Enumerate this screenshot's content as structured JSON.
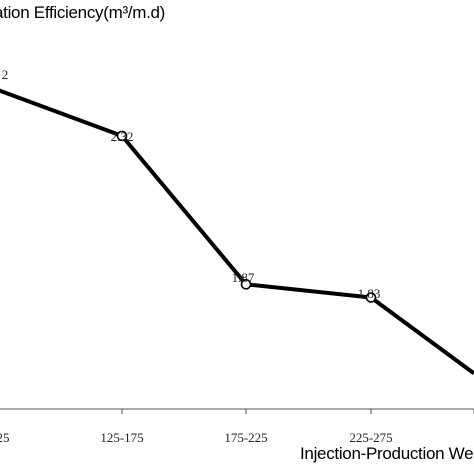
{
  "chart_data": {
    "type": "line",
    "title": "",
    "ylabel": "ation Efficiency(m³/m.d)",
    "xlabel": "Injection-Production We",
    "categories": [
      "25",
      "125-175",
      "175-225",
      "225-275",
      ""
    ],
    "series": [
      {
        "values": [
          null,
          2.32,
          1.87,
          1.83,
          null
        ],
        "labels": [
          "2",
          "2.32",
          "1.87",
          "1.83",
          ""
        ]
      }
    ],
    "line_values_visible": [
      2.46,
      2.32,
      1.87,
      1.83,
      1.6
    ],
    "ylim": [
      1.58,
      2.55
    ],
    "grid": false,
    "line_color": "#000000",
    "marker": "open-circle"
  }
}
